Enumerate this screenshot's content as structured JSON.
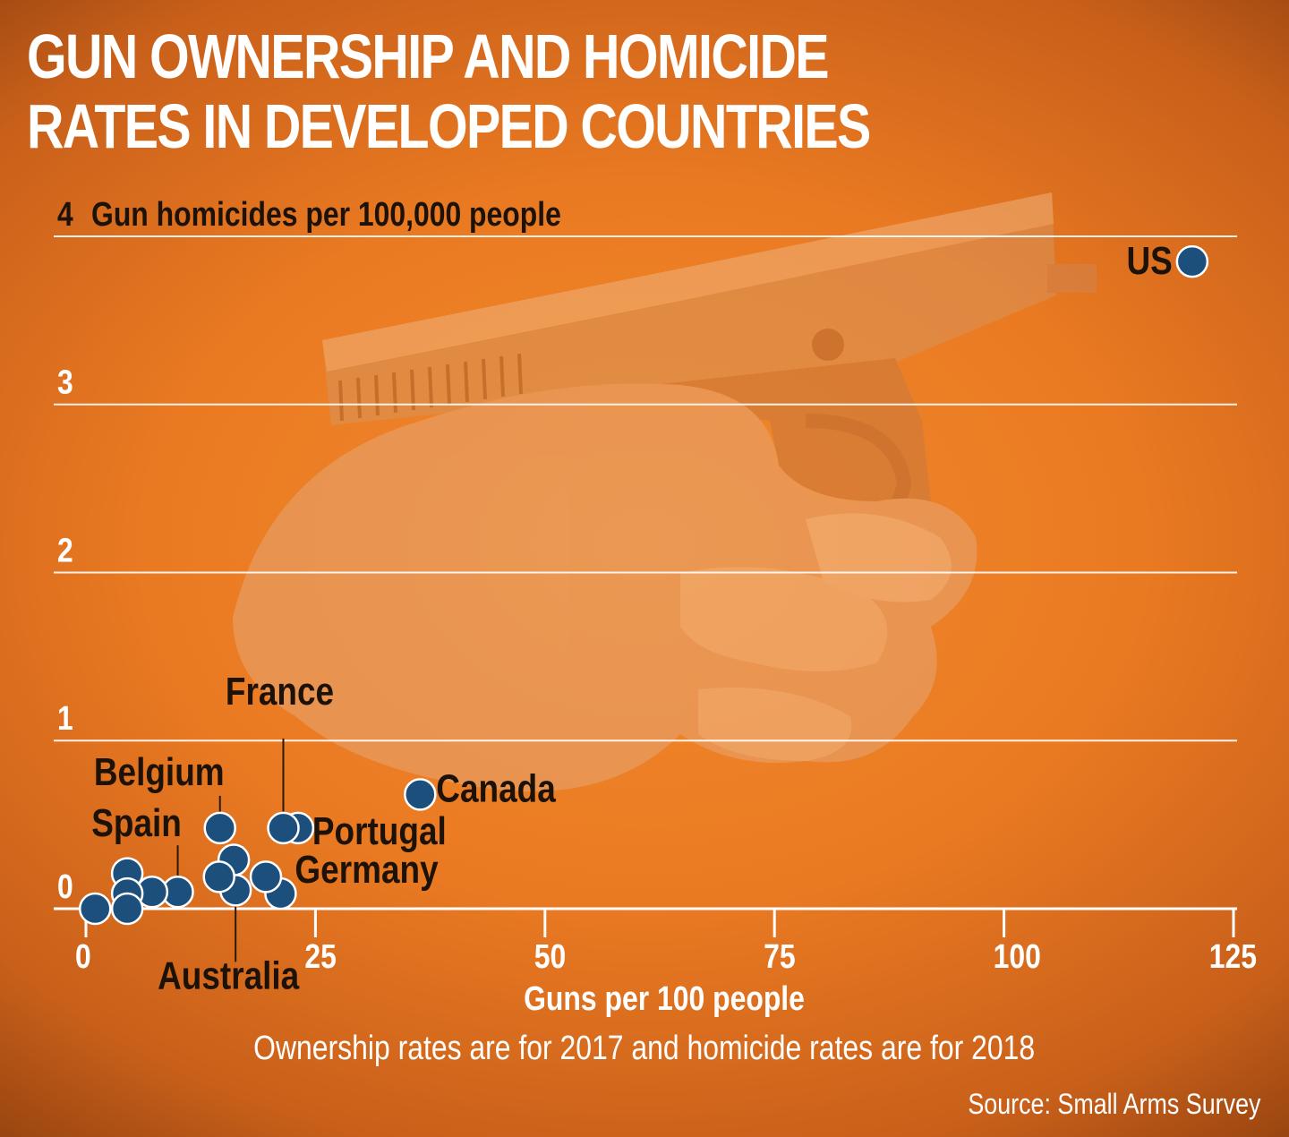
{
  "title": "GUN OWNERSHIP AND HOMICIDE RATES IN DEVELOPED COUNTRIES",
  "caption": "Ownership rates are for 2017 and homicide rates are for 2018",
  "source": "Source: Small Arms Survey",
  "colors": {
    "background": "#ea7a22",
    "dot": "#1c4f7c",
    "gridline": "#ffffff",
    "text": "#ffffff"
  },
  "background_image": "hand-holding-pistol-photo",
  "chart_data": {
    "type": "scatter",
    "title": "GUN OWNERSHIP AND HOMICIDE RATES IN DEVELOPED COUNTRIES",
    "xlabel": "Guns per 100 people",
    "ylabel": "Gun homicides per 100,000 people",
    "xlim": [
      0,
      125
    ],
    "ylim": [
      0,
      4
    ],
    "xticks": [
      "0",
      "25",
      "50",
      "75",
      "100",
      "125"
    ],
    "yticks": [
      "0",
      "1",
      "2",
      "3",
      "4"
    ],
    "grid": "horizontal",
    "points": [
      {
        "label": "US",
        "x": 120.5,
        "y": 3.85
      },
      {
        "label": "Canada",
        "x": 36.4,
        "y": 0.68
      },
      {
        "label": "Portugal",
        "x": 23.1,
        "y": 0.48
      },
      {
        "label": "France",
        "x": 21.5,
        "y": 0.48
      },
      {
        "label": "Belgium",
        "x": 14.6,
        "y": 0.48
      },
      {
        "label": "Germany",
        "x": 21.2,
        "y": 0.09
      },
      {
        "label": "Australia",
        "x": 16.3,
        "y": 0.11
      },
      {
        "label": "",
        "x": 19.6,
        "y": 0.19
      },
      {
        "label": "",
        "x": 16.1,
        "y": 0.29
      },
      {
        "label": "",
        "x": 14.5,
        "y": 0.19
      },
      {
        "label": "Spain",
        "x": 10.0,
        "y": 0.1
      },
      {
        "label": "",
        "x": 7.2,
        "y": 0.1
      },
      {
        "label": "",
        "x": 4.5,
        "y": 0.21
      },
      {
        "label": "",
        "x": 4.5,
        "y": 0.09
      },
      {
        "label": "",
        "x": 4.5,
        "y": 0.0
      },
      {
        "label": "",
        "x": 1.0,
        "y": 0.0
      }
    ]
  }
}
